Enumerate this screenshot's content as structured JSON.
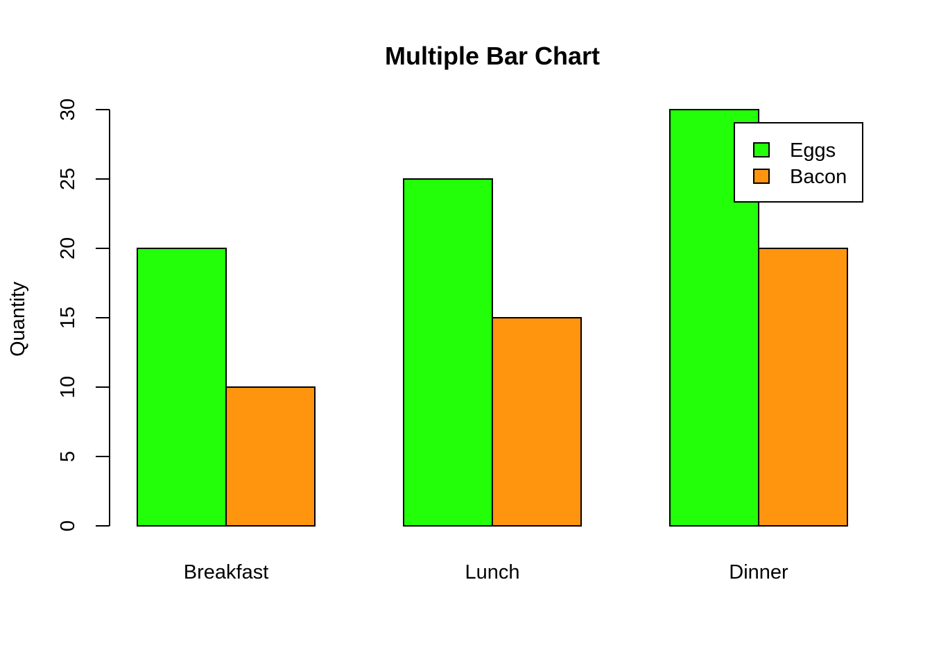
{
  "chart_data": {
    "type": "bar",
    "mode": "grouped",
    "title": "Multiple Bar Chart",
    "xlabel": "",
    "ylabel": "Quantity",
    "categories": [
      "Breakfast",
      "Lunch",
      "Dinner"
    ],
    "series": [
      {
        "name": "Eggs",
        "values": [
          20,
          25,
          30
        ],
        "color": "#22ff09"
      },
      {
        "name": "Bacon",
        "values": [
          10,
          15,
          20
        ],
        "color": "#ff950e"
      }
    ],
    "ylim": [
      0,
      30
    ],
    "yticks": [
      "0",
      "5",
      "10",
      "15",
      "20",
      "25",
      "30"
    ],
    "grid": false,
    "legend_position": "top-right"
  }
}
